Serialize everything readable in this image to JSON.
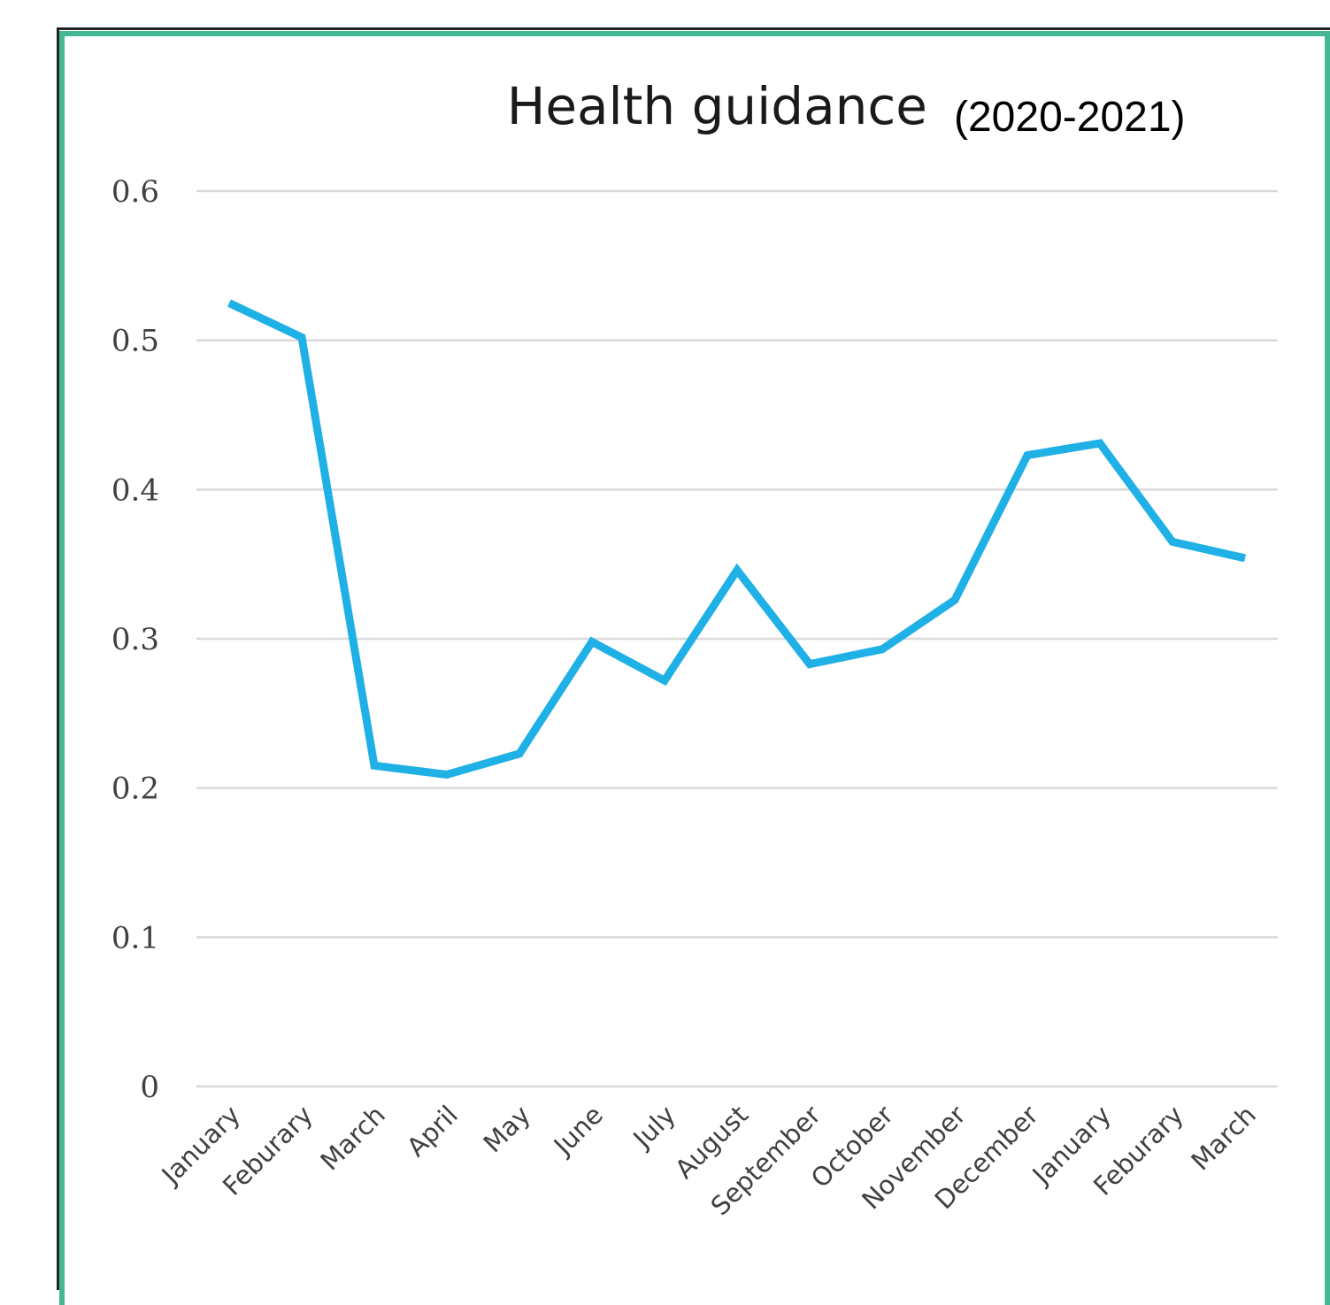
{
  "chart_data": {
    "type": "line",
    "title": "Health guidance",
    "subtitle": "(2020-2021)",
    "xlabel": "",
    "ylabel": "",
    "ylim": [
      0,
      0.6
    ],
    "yticks": [
      "0",
      "0.1",
      "0.2",
      "0.3",
      "0.4",
      "0.5",
      "0.6"
    ],
    "grid": true,
    "categories": [
      "January",
      "Feburary",
      "March",
      "April",
      "May",
      "June",
      "July",
      "August",
      "September",
      "October",
      "November",
      "December",
      "January",
      "Feburary",
      "March"
    ],
    "series": [
      {
        "values": [
          0.525,
          0.502,
          0.215,
          0.209,
          0.223,
          0.298,
          0.272,
          0.346,
          0.283,
          0.293,
          0.326,
          0.423,
          0.431,
          0.365,
          0.354
        ]
      }
    ],
    "colors": {
      "line": "#1fb0e6",
      "frame": "#44b794",
      "grid": "#d9d9d9"
    }
  }
}
